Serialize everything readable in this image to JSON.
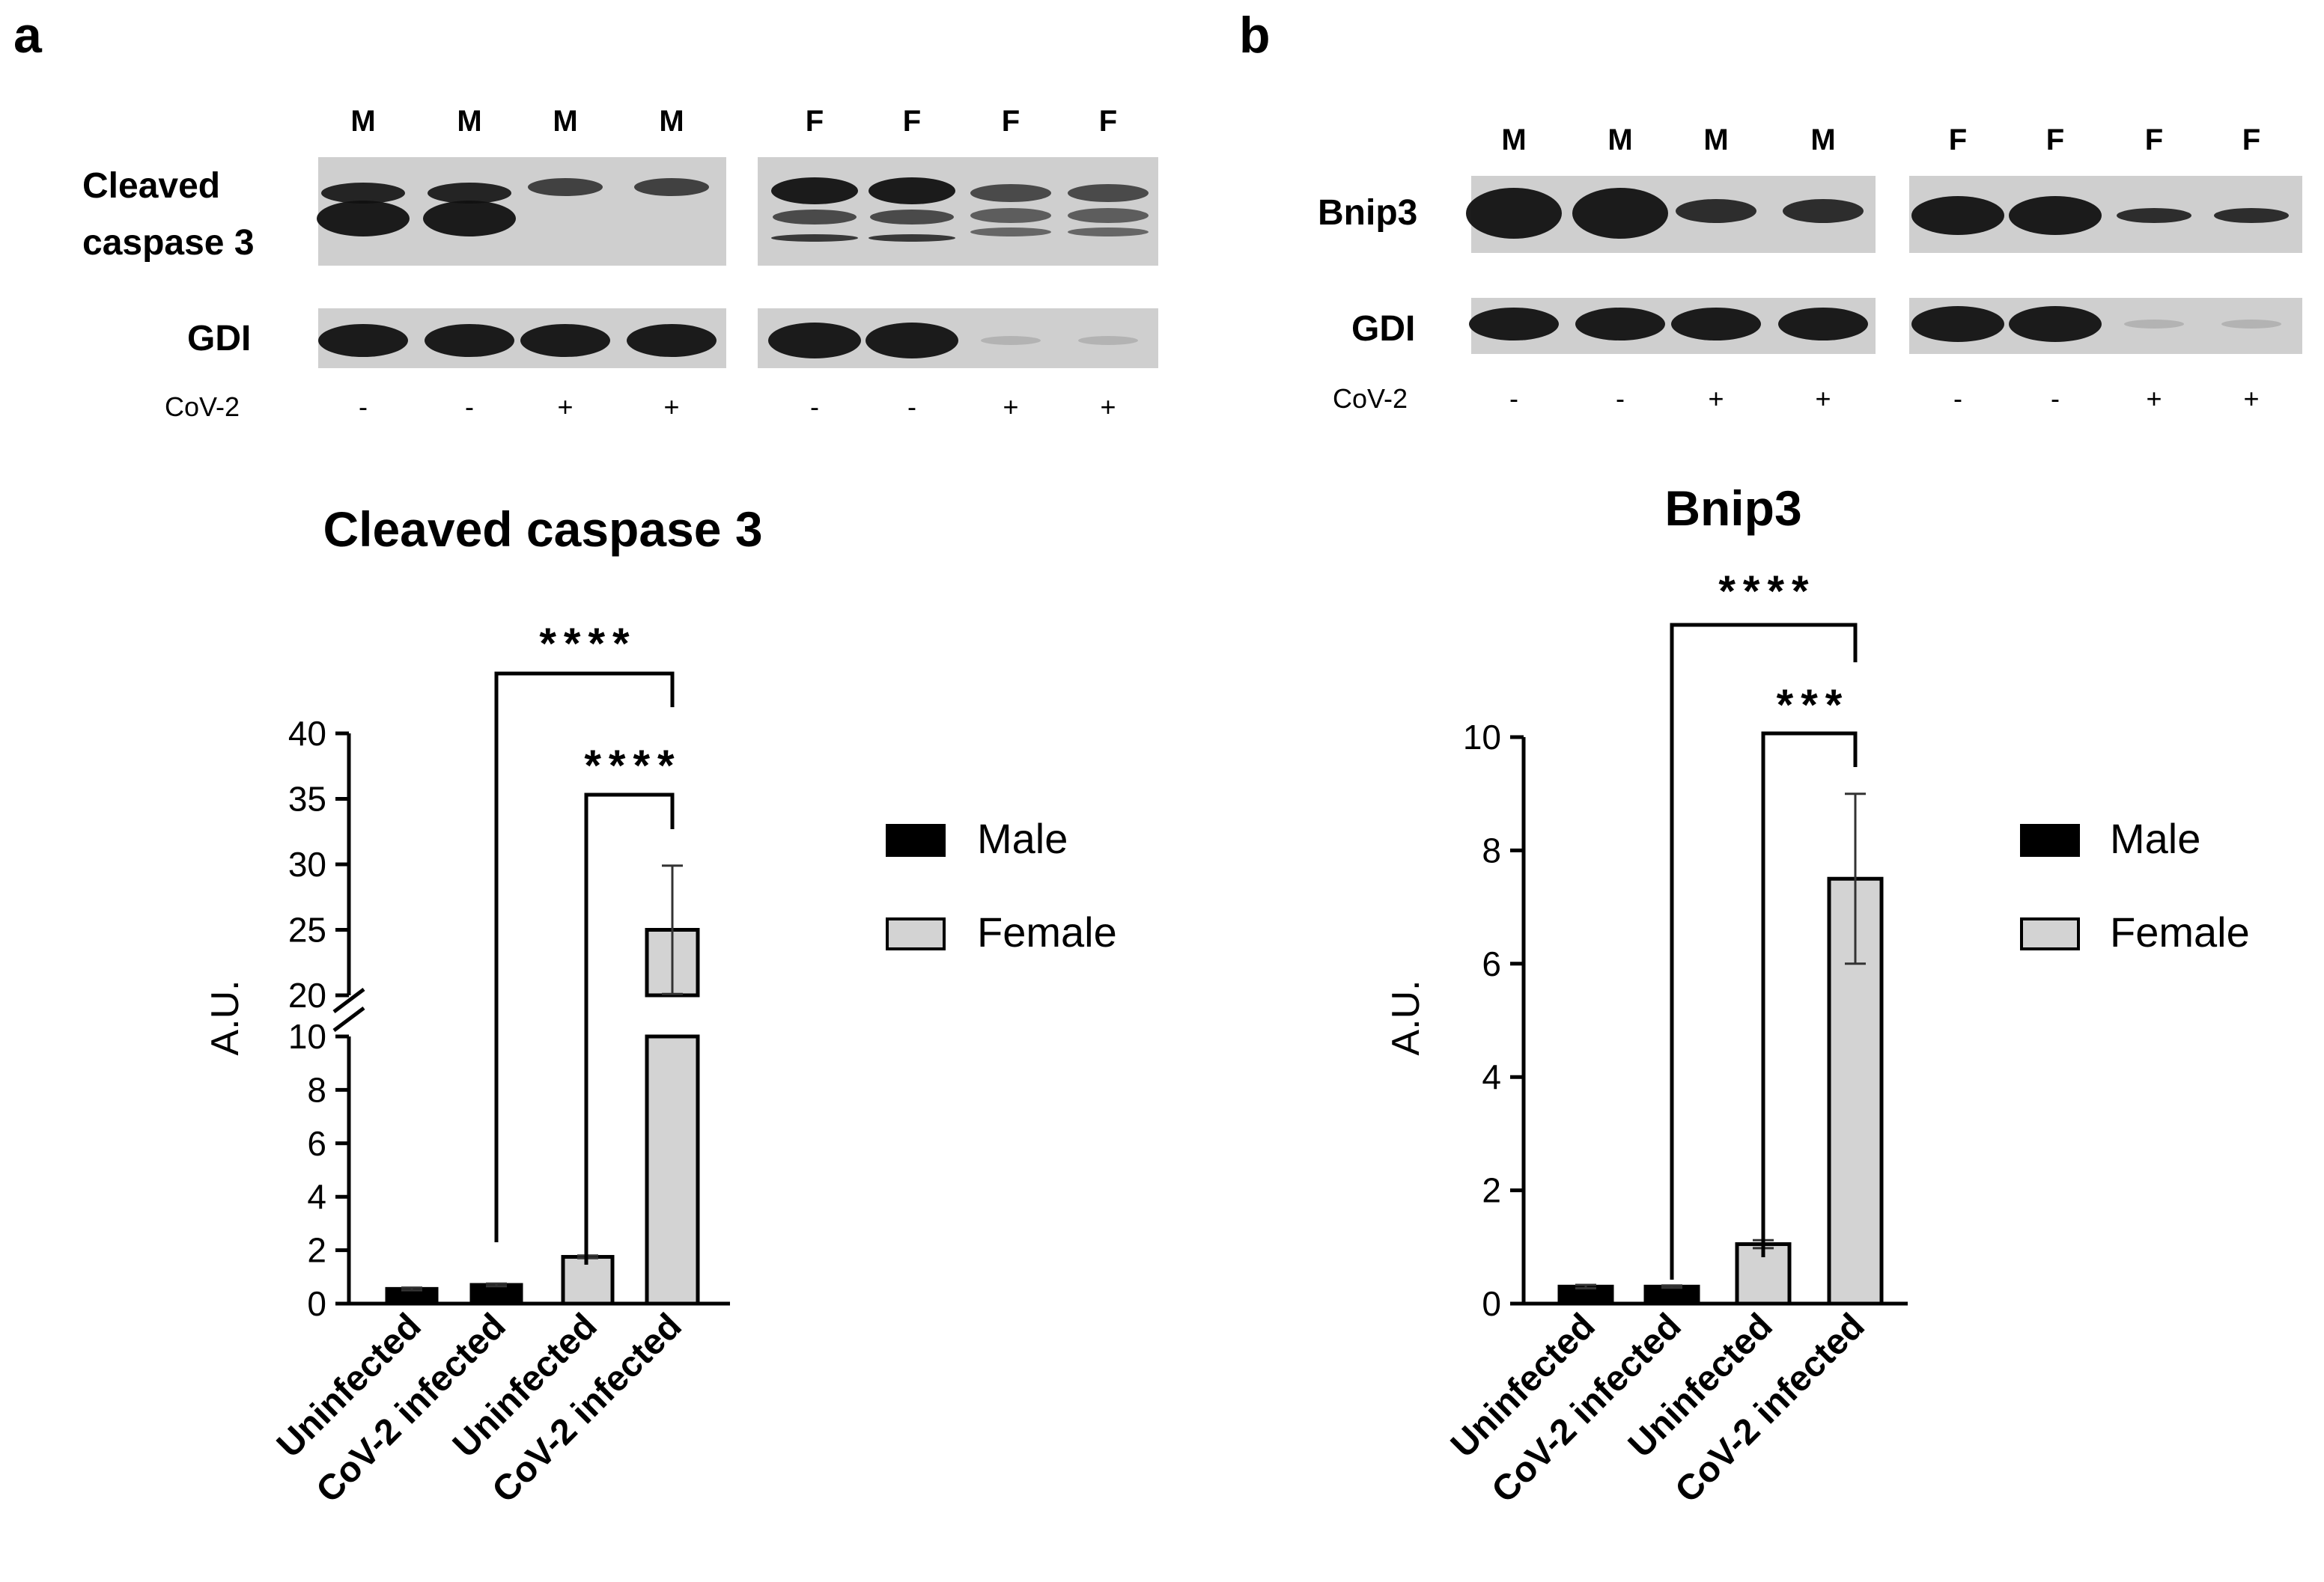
{
  "panel_a": {
    "label": "a",
    "blot": {
      "lane_labels": [
        "M",
        "M",
        "M",
        "M",
        "F",
        "F",
        "F",
        "F"
      ],
      "band_labels": [
        "Cleaved\ncaspase 3",
        "GDI"
      ],
      "band_label_lines": [
        "Cleaved",
        "caspase 3"
      ],
      "loading_label": "GDI",
      "cov_label": "CoV-2",
      "cov_signs": [
        "-",
        "-",
        "+",
        "+",
        "-",
        "-",
        "+",
        "+"
      ]
    }
  },
  "panel_b": {
    "label": "b",
    "blot": {
      "lane_labels": [
        "M",
        "M",
        "M",
        "M",
        "F",
        "F",
        "F",
        "F"
      ],
      "target_label": "Bnip3",
      "loading_label": "GDI",
      "cov_label": "CoV-2",
      "cov_signs": [
        "-",
        "-",
        "+",
        "+",
        "-",
        "-",
        "+",
        "+"
      ]
    }
  },
  "legend": {
    "male": "Male",
    "female": "Female"
  },
  "colors": {
    "male": "#000000",
    "female": "#d3d3d3",
    "blot_bg": "#cfcfcf",
    "band": "#111111"
  },
  "chart_data": [
    {
      "type": "bar",
      "title": "Cleaved caspase 3",
      "ylabel": "A.U.",
      "categories": [
        "Uninfected",
        "CoV-2 infected",
        "Uninfected",
        "CoV-2 infected"
      ],
      "series": [
        {
          "name": "Male",
          "values": [
            0.55,
            0.7,
            null,
            null
          ],
          "errors": [
            0.05,
            0.05,
            null,
            null
          ]
        },
        {
          "name": "Female",
          "values": [
            null,
            null,
            1.75,
            25.0
          ],
          "errors": [
            null,
            null,
            0.05,
            4.9
          ]
        }
      ],
      "y_axis_break": {
        "lower": [
          0,
          10
        ],
        "upper": [
          20,
          40
        ]
      },
      "yticks_lower": [
        "0",
        "2",
        "4",
        "6",
        "8",
        "10"
      ],
      "yticks_upper": [
        "20",
        "25",
        "30",
        "35",
        "40"
      ],
      "significance": [
        {
          "from": "CoV-2 infected",
          "to": "CoV-2 infected (Female)",
          "label": "****"
        },
        {
          "from": "Uninfected (Female)",
          "to": "CoV-2 infected (Female)",
          "label": "****"
        }
      ]
    },
    {
      "type": "bar",
      "title": "Bnip3",
      "ylabel": "A.U.",
      "categories": [
        "Uninfected",
        "CoV-2 infected",
        "Uninfected",
        "CoV-2 infected"
      ],
      "series": [
        {
          "name": "Male",
          "values": [
            0.3,
            0.3,
            null,
            null
          ],
          "errors": [
            0.03,
            0.02,
            null,
            null
          ]
        },
        {
          "name": "Female",
          "values": [
            null,
            null,
            1.05,
            7.5
          ],
          "errors": [
            null,
            null,
            0.07,
            1.5
          ]
        }
      ],
      "ylim": [
        0,
        10
      ],
      "yticks": [
        "0",
        "2",
        "4",
        "6",
        "8",
        "10"
      ],
      "significance": [
        {
          "from": "CoV-2 infected",
          "to": "CoV-2 infected (Female)",
          "label": "****"
        },
        {
          "from": "Uninfected (Female)",
          "to": "CoV-2 infected (Female)",
          "label": "***"
        }
      ]
    }
  ]
}
